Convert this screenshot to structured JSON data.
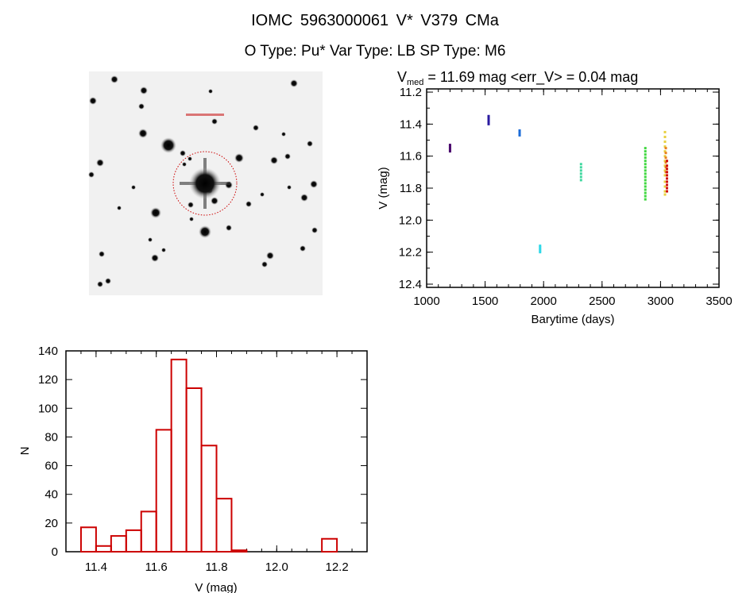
{
  "header": {
    "title": "IOMC 5963000061    V* V379 CMa",
    "subtitle": "O Type: Pu*   Var Type: LB   SP Type: M6"
  },
  "image_panel": {
    "content": "sky finder chart",
    "circle_color": "#cc0000"
  },
  "chart_data": [
    {
      "type": "scatter",
      "title_prefix": "V",
      "title_sub": "med",
      "title_rest": " = 11.69 mag <err_V> = 0.04 mag",
      "xlabel": "Barytime (days)",
      "ylabel": "V (mag)",
      "xlim": [
        1000,
        3500
      ],
      "ylim": [
        11.18,
        12.42
      ],
      "y_inverted": true,
      "xticks": [
        1000,
        1500,
        2000,
        2500,
        3000,
        3500
      ],
      "yticks": [
        "11.2",
        "11.4",
        "11.6",
        "11.8",
        "12.0",
        "12.2",
        "12.4"
      ],
      "groups": [
        {
          "x": 1200,
          "color": "#4b0a6e",
          "y": [
            11.53,
            11.54,
            11.55,
            11.56,
            11.57
          ]
        },
        {
          "x": 1530,
          "color": "#2a1aa0",
          "y": [
            11.35,
            11.36,
            11.37,
            11.38,
            11.39,
            11.4
          ]
        },
        {
          "x": 1795,
          "color": "#1c6cd8",
          "y": [
            11.44,
            11.45,
            11.46,
            11.47
          ]
        },
        {
          "x": 1970,
          "color": "#30d8e8",
          "y": [
            12.16,
            12.17,
            12.18,
            12.19,
            12.2
          ]
        },
        {
          "x": 2320,
          "color": "#40d8a0",
          "y": [
            11.65,
            11.67,
            11.69,
            11.71,
            11.73,
            11.75
          ]
        },
        {
          "x": 2870,
          "color": "#40d840",
          "y": [
            11.55,
            11.57,
            11.59,
            11.61,
            11.63,
            11.65,
            11.67,
            11.69,
            11.71,
            11.73,
            11.75,
            11.77,
            11.79,
            11.81,
            11.83,
            11.85,
            11.87
          ]
        },
        {
          "x": 3038,
          "color": "#e8d040",
          "y": [
            11.45,
            11.48,
            11.51,
            11.54,
            11.57,
            11.6,
            11.63,
            11.66,
            11.69,
            11.72,
            11.76,
            11.79,
            11.82,
            11.84
          ]
        },
        {
          "x": 3045,
          "color": "#e88020",
          "y": [
            11.55,
            11.58,
            11.61,
            11.64,
            11.67,
            11.7
          ]
        },
        {
          "x": 3055,
          "color": "#d01010",
          "y": [
            11.63,
            11.66,
            11.68,
            11.7,
            11.72,
            11.74,
            11.76,
            11.78,
            11.8,
            11.82
          ]
        }
      ]
    },
    {
      "type": "bar",
      "xlabel": "V (mag)",
      "ylabel": "N",
      "xlim": [
        11.3,
        12.3
      ],
      "ylim": [
        0,
        140
      ],
      "bin_width": 0.05,
      "color": "#cc0000",
      "xticks": [
        "11.4",
        "11.6",
        "11.8",
        "12.0",
        "12.2"
      ],
      "yticks": [
        "0",
        "20",
        "40",
        "60",
        "80",
        "100",
        "120",
        "140"
      ],
      "bin_starts": [
        11.35,
        11.4,
        11.45,
        11.5,
        11.55,
        11.6,
        11.65,
        11.7,
        11.75,
        11.8,
        11.85,
        11.9,
        11.95,
        12.0,
        12.05,
        12.1,
        12.15
      ],
      "values": [
        17,
        4,
        11,
        15,
        28,
        85,
        134,
        114,
        74,
        37,
        1,
        0,
        0,
        0,
        0,
        0,
        9
      ]
    }
  ]
}
